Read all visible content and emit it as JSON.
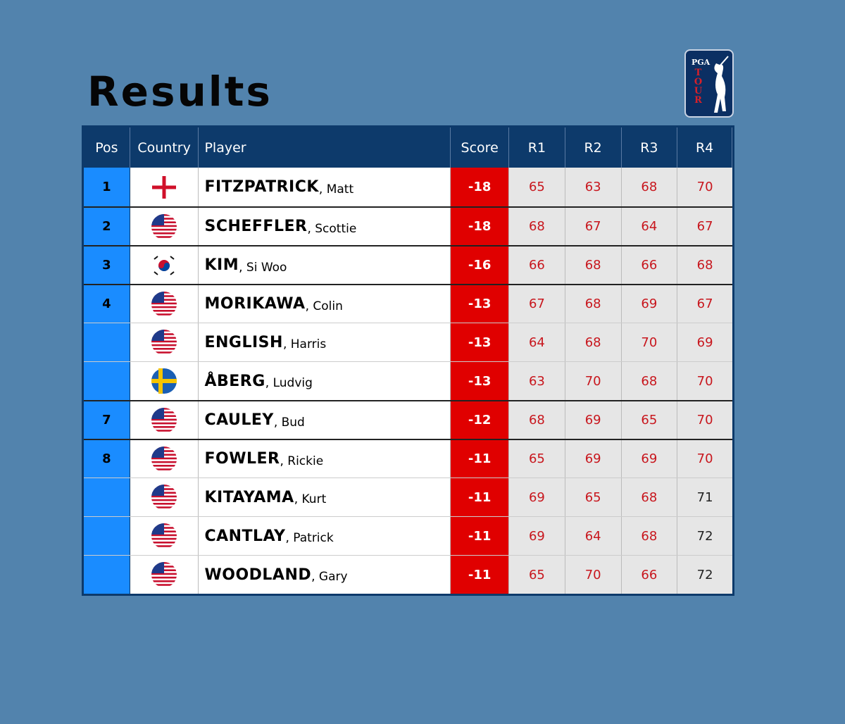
{
  "header": {
    "title": "Results",
    "logo": {
      "top": "PGA",
      "side": "TOUR"
    }
  },
  "table": {
    "columns": [
      "Pos",
      "Country",
      "Player",
      "Score",
      "R1",
      "R2",
      "R3",
      "R4"
    ],
    "colors": {
      "header": "#0d3a6b",
      "pos": "#1a8cff",
      "score": "#e00000",
      "rounds_bg": "#e6e6e6"
    },
    "rows": [
      {
        "pos": 1,
        "flag": "eng",
        "player": "FITZPATRICK, Matt",
        "score": -18,
        "rounds": [
          65,
          63,
          68,
          70
        ],
        "round_colors": [
          "#c8161d",
          "#c8161d",
          "#c8161d",
          "#c8161d"
        ]
      },
      {
        "pos": 2,
        "flag": "usa",
        "player": "SCHEFFLER, Scottie",
        "score": -18,
        "rounds": [
          68,
          67,
          64,
          67
        ],
        "round_colors": [
          "#c8161d",
          "#c8161d",
          "#c8161d",
          "#c8161d"
        ]
      },
      {
        "pos": 3,
        "flag": "kor",
        "player": "KIM, Si Woo",
        "score": -16,
        "rounds": [
          66,
          68,
          66,
          68
        ],
        "round_colors": [
          "#c8161d",
          "#c8161d",
          "#c8161d",
          "#c8161d"
        ]
      },
      {
        "pos": 4,
        "flag": "usa",
        "player": "MORIKAWA, Colin",
        "score": -13,
        "rounds": [
          67,
          68,
          69,
          67
        ],
        "round_colors": [
          "#c8161d",
          "#c8161d",
          "#c8161d",
          "#c8161d"
        ]
      },
      {
        "pos": null,
        "flag": "usa",
        "player": "ENGLISH, Harris",
        "score": -13,
        "rounds": [
          64,
          68,
          70,
          69
        ],
        "round_colors": [
          "#c8161d",
          "#c8161d",
          "#c8161d",
          "#c8161d"
        ]
      },
      {
        "pos": null,
        "flag": "swe",
        "player": "ÅBERG, Ludvig",
        "score": -13,
        "rounds": [
          63,
          70,
          68,
          70
        ],
        "round_colors": [
          "#c8161d",
          "#c8161d",
          "#c8161d",
          "#c8161d"
        ]
      },
      {
        "pos": 7,
        "flag": "usa",
        "player": "CAULEY, Bud",
        "score": -12,
        "rounds": [
          68,
          69,
          65,
          70
        ],
        "round_colors": [
          "#c8161d",
          "#c8161d",
          "#c8161d",
          "#c8161d"
        ]
      },
      {
        "pos": 8,
        "flag": "usa",
        "player": "FOWLER, Rickie",
        "score": -11,
        "rounds": [
          65,
          69,
          69,
          70
        ],
        "round_colors": [
          "#c8161d",
          "#c8161d",
          "#c8161d",
          "#c8161d"
        ]
      },
      {
        "pos": null,
        "flag": "usa",
        "player": "KITAYAMA, Kurt",
        "score": -11,
        "rounds": [
          69,
          65,
          68,
          71
        ],
        "round_colors": [
          "#c8161d",
          "#c8161d",
          "#c8161d",
          "#222222"
        ]
      },
      {
        "pos": null,
        "flag": "usa",
        "player": "CANTLAY, Patrick",
        "score": -11,
        "rounds": [
          69,
          64,
          68,
          72
        ],
        "round_colors": [
          "#c8161d",
          "#c8161d",
          "#c8161d",
          "#222222"
        ]
      },
      {
        "pos": null,
        "flag": "usa",
        "player": "WOODLAND, Gary",
        "score": -11,
        "rounds": [
          65,
          70,
          66,
          72
        ],
        "round_colors": [
          "#c8161d",
          "#c8161d",
          "#c8161d",
          "#222222"
        ]
      }
    ]
  }
}
